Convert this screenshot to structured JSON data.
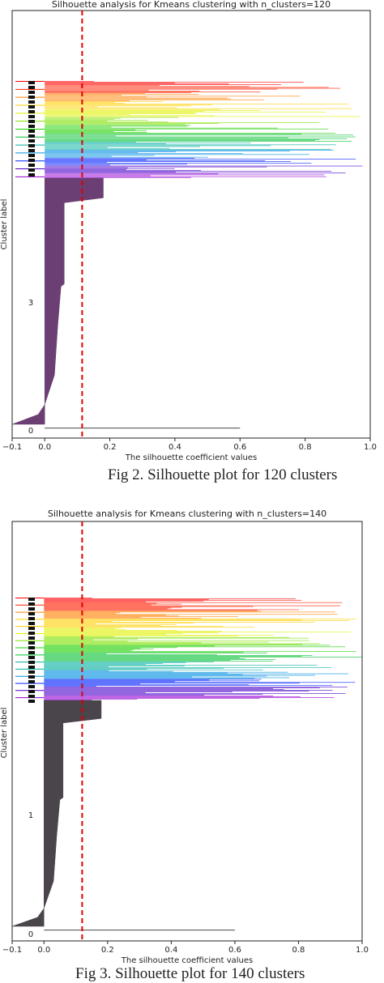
{
  "figures": [
    {
      "caption": "Fig 2. Silhouette plot for 120 clusters",
      "chart_data": {
        "type": "silhouette",
        "title": "Silhouette analysis for Kmeans clustering with n_clusters=120",
        "xlabel": "The silhouette coefficient values",
        "ylabel": "Cluster label",
        "xlim": [
          -0.1,
          1.0
        ],
        "x_ticks": [
          "−0.1",
          "0.0",
          "0.2",
          "0.4",
          "0.6",
          "0.8",
          "1.0"
        ],
        "average_silhouette": 0.115,
        "large_cluster": {
          "label": "3",
          "fill": "#6b3f73",
          "profile": [
            [
              0.0,
              -0.1
            ],
            [
              0.04,
              -0.02
            ],
            [
              0.08,
              0.0
            ],
            [
              0.2,
              0.03
            ],
            [
              0.4,
              0.04
            ],
            [
              0.56,
              0.05
            ],
            [
              0.57,
              0.06
            ],
            [
              0.9,
              0.06
            ],
            [
              0.92,
              0.18
            ],
            [
              1.0,
              0.18
            ]
          ]
        },
        "small_clusters": {
          "count": 110,
          "colors": [
            "#9400d3",
            "#4b00c8",
            "#0020ff",
            "#0090e0",
            "#00b0a0",
            "#00c030",
            "#20d000",
            "#80e000",
            "#e0f000",
            "#ffd000",
            "#ff8000",
            "#ff2000",
            "#ff0000"
          ],
          "reach_max": 1.0
        },
        "bottom_label": "0"
      }
    },
    {
      "caption": "Fig 3. Silhouette plot for 140 clusters",
      "chart_data": {
        "type": "silhouette",
        "title": "Silhouette analysis for Kmeans clustering with n_clusters=140",
        "xlabel": "The silhouette coefficient values",
        "ylabel": "Cluster label",
        "xlim": [
          -0.1,
          1.0
        ],
        "x_ticks": [
          "−0.1",
          "0.0",
          "0.2",
          "0.4",
          "0.6",
          "0.8",
          "1.0"
        ],
        "average_silhouette": 0.12,
        "large_cluster": {
          "label": "1",
          "fill": "#4a444b",
          "profile": [
            [
              0.0,
              -0.1
            ],
            [
              0.04,
              -0.02
            ],
            [
              0.08,
              0.0
            ],
            [
              0.2,
              0.03
            ],
            [
              0.4,
              0.04
            ],
            [
              0.56,
              0.05
            ],
            [
              0.57,
              0.06
            ],
            [
              0.9,
              0.06
            ],
            [
              0.92,
              0.18
            ],
            [
              1.0,
              0.18
            ]
          ]
        },
        "small_clusters": {
          "count": 130,
          "colors": [
            "#9400d3",
            "#4b00c8",
            "#0020ff",
            "#0090e0",
            "#00b0a0",
            "#00c030",
            "#20d000",
            "#80e000",
            "#e0f000",
            "#ffd000",
            "#ff8000",
            "#ff2000",
            "#ff0000"
          ],
          "reach_max": 1.0
        },
        "bottom_label": "0"
      }
    }
  ]
}
